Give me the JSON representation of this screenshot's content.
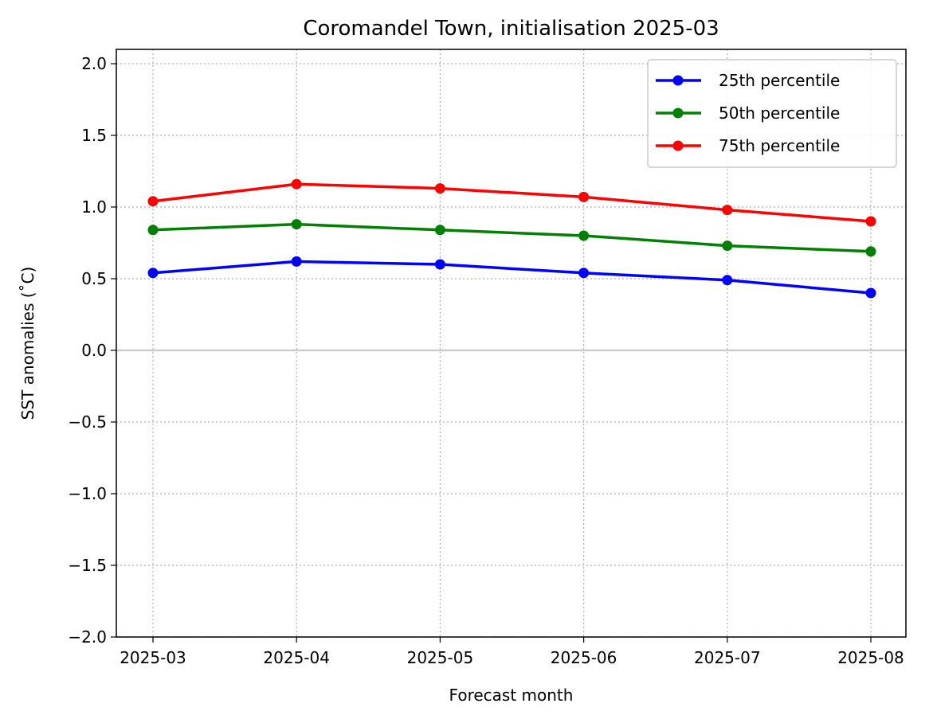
{
  "chart_data": {
    "type": "line",
    "title": "Coromandel Town, initialisation 2025-03",
    "xlabel": "Forecast month",
    "ylabel": "SST anomalies (˚C)",
    "categories": [
      "2025-03",
      "2025-04",
      "2025-05",
      "2025-06",
      "2025-07",
      "2025-08"
    ],
    "ylim": [
      -2.0,
      2.1
    ],
    "yticks": [
      -2.0,
      -1.5,
      -1.0,
      -0.5,
      0.0,
      0.5,
      1.0,
      1.5,
      2.0
    ],
    "ytick_labels": [
      "−2.0",
      "−1.5",
      "−1.0",
      "−0.5",
      "0.0",
      "0.5",
      "1.0",
      "1.5",
      "2.0"
    ],
    "grid": true,
    "zero_line": true,
    "legend_position": "top-right",
    "series": [
      {
        "name": "25th percentile",
        "color": "#0000ff",
        "values": [
          0.54,
          0.62,
          0.6,
          0.54,
          0.49,
          0.4
        ]
      },
      {
        "name": "50th percentile",
        "color": "#008000",
        "values": [
          0.84,
          0.88,
          0.84,
          0.8,
          0.73,
          0.69
        ]
      },
      {
        "name": "75th percentile",
        "color": "#ff0000",
        "values": [
          1.04,
          1.16,
          1.13,
          1.07,
          0.98,
          0.9
        ]
      }
    ]
  }
}
